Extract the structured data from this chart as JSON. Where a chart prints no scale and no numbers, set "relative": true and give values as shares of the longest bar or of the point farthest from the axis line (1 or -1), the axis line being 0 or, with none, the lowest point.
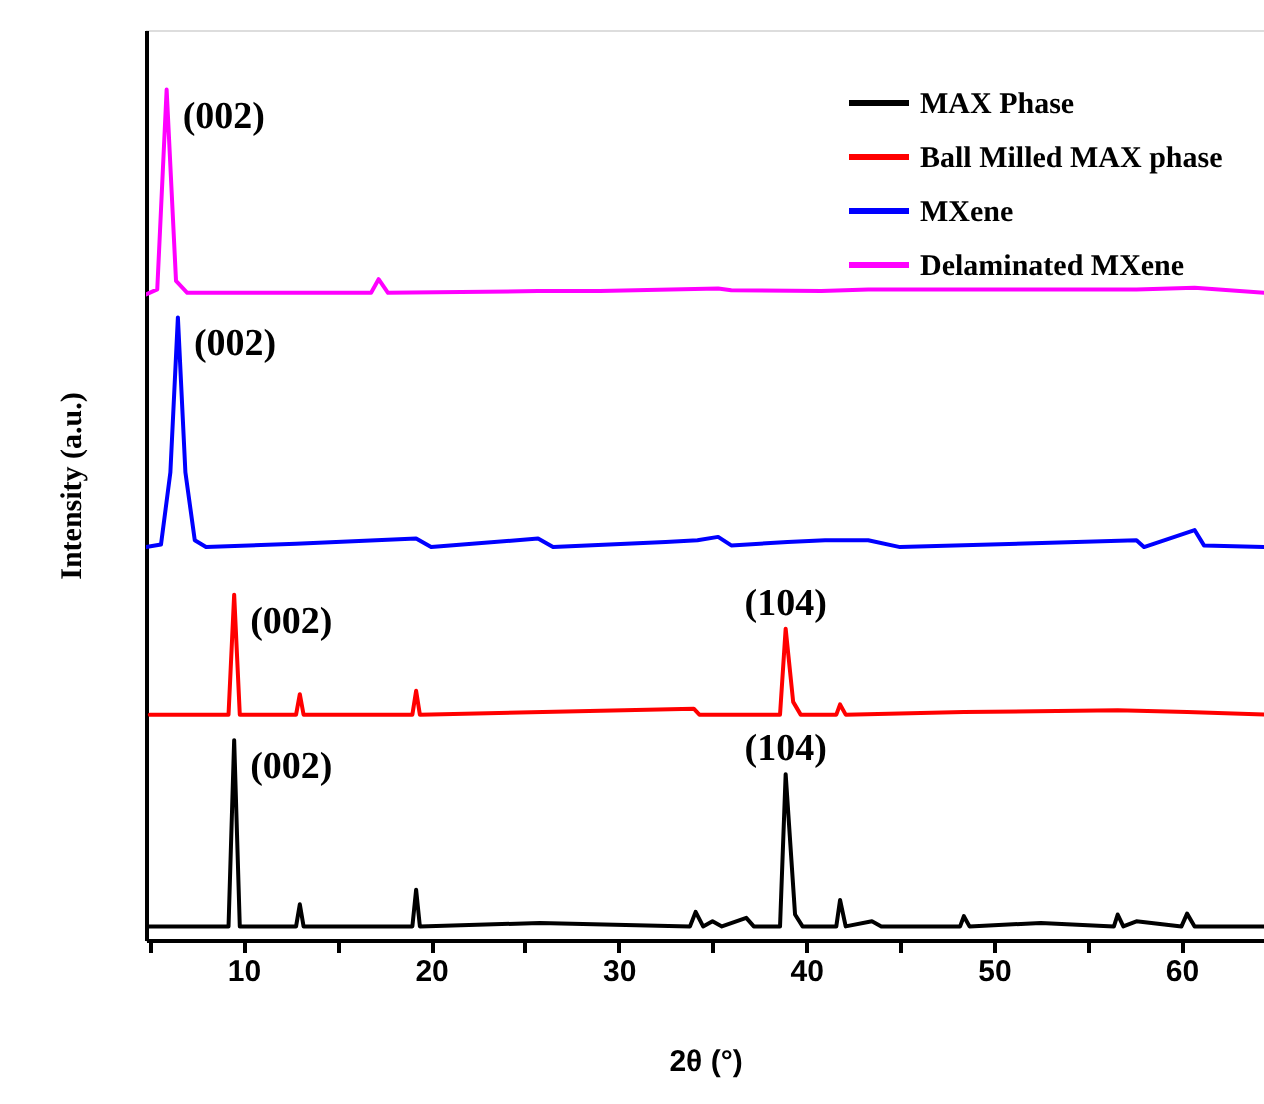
{
  "chart_data": {
    "type": "line",
    "relative": true,
    "xlabel": "2θ (°)",
    "ylabel": "Intensity (a.u.)",
    "xlim": [
      4.8,
      64.4
    ],
    "xticks": [
      {
        "value": 5,
        "label": null
      },
      10,
      {
        "value": 15,
        "label": null
      },
      20,
      {
        "value": 25,
        "label": null
      },
      30,
      {
        "value": 35,
        "label": null
      },
      40,
      {
        "value": 45,
        "label": null
      },
      50,
      {
        "value": 55,
        "label": null
      },
      60
    ],
    "tick_labels": "x",
    "grid": false,
    "legend": "top right",
    "marker": "none",
    "line_style": "solid",
    "series": [
      {
        "name": "MAX Phase",
        "color": "#000000",
        "x": [
          4.8,
          9.2,
          9.5,
          9.8,
          12.8,
          13.0,
          13.2,
          19.0,
          19.2,
          19.4,
          25.8,
          33.8,
          34.1,
          34.5,
          35.0,
          35.5,
          36.8,
          37.2,
          38.6,
          38.9,
          39.4,
          39.8,
          41.6,
          41.8,
          42.1,
          43.5,
          44.0,
          48.2,
          48.4,
          48.7,
          52.5,
          56.4,
          56.6,
          56.9,
          57.6,
          60.0,
          60.3,
          60.7,
          64.4
        ],
        "values": [
          0.016,
          0.016,
          0.235,
          0.016,
          0.016,
          0.042,
          0.016,
          0.016,
          0.059,
          0.016,
          0.02,
          0.016,
          0.033,
          0.016,
          0.022,
          0.016,
          0.026,
          0.016,
          0.016,
          0.195,
          0.03,
          0.016,
          0.016,
          0.047,
          0.016,
          0.022,
          0.016,
          0.016,
          0.028,
          0.016,
          0.02,
          0.016,
          0.03,
          0.016,
          0.022,
          0.016,
          0.031,
          0.016,
          0.016
        ]
      },
      {
        "name": "Ball Milled MAX phase",
        "color": "#ff0000",
        "x": [
          5.0,
          9.2,
          9.5,
          9.8,
          12.8,
          13.0,
          13.2,
          19.0,
          19.2,
          19.4,
          34.0,
          34.3,
          38.6,
          38.9,
          39.3,
          39.7,
          41.6,
          41.8,
          42.1,
          48.4,
          56.6,
          60.3,
          64.4
        ],
        "values": [
          0.265,
          0.265,
          0.406,
          0.265,
          0.265,
          0.289,
          0.265,
          0.265,
          0.293,
          0.265,
          0.272,
          0.265,
          0.265,
          0.366,
          0.28,
          0.265,
          0.265,
          0.277,
          0.265,
          0.268,
          0.27,
          0.268,
          0.265
        ]
      },
      {
        "name": "MXene",
        "color": "#0000ff",
        "x": [
          4.8,
          5.6,
          6.1,
          6.5,
          6.9,
          7.4,
          8.0,
          12.8,
          19.2,
          20.0,
          25.7,
          26.5,
          32.5,
          34.2,
          35.3,
          36.0,
          39.0,
          41.0,
          43.3,
          45.0,
          57.6,
          58.0,
          60.7,
          61.2,
          64.4
        ],
        "values": [
          0.462,
          0.465,
          0.55,
          0.732,
          0.55,
          0.47,
          0.462,
          0.466,
          0.472,
          0.462,
          0.472,
          0.462,
          0.468,
          0.47,
          0.474,
          0.464,
          0.468,
          0.47,
          0.47,
          0.462,
          0.47,
          0.462,
          0.482,
          0.464,
          0.462
        ]
      },
      {
        "name": "Delaminated MXene",
        "color": "#ff00ff",
        "x": [
          4.8,
          5.4,
          5.9,
          6.4,
          7.0,
          16.8,
          17.2,
          17.7,
          25.7,
          29.0,
          35.3,
          36.0,
          40.8,
          43.3,
          57.6,
          60.7,
          64.4
        ],
        "values": [
          0.759,
          0.765,
          1.0,
          0.775,
          0.761,
          0.761,
          0.777,
          0.761,
          0.763,
          0.763,
          0.766,
          0.764,
          0.763,
          0.765,
          0.765,
          0.767,
          0.761
        ]
      }
    ],
    "annotations": [
      {
        "text": "(002)",
        "x": 5.9,
        "y": 1.0
      },
      {
        "text": "(002)",
        "x": 6.5,
        "y": 0.732
      },
      {
        "text": "(002)",
        "x": 9.5,
        "y": 0.406
      },
      {
        "text": "(104)",
        "x": 38.9,
        "y": 0.366
      },
      {
        "text": "(002)",
        "x": 9.5,
        "y": 0.235
      },
      {
        "text": "(104)",
        "x": 38.9,
        "y": 0.195
      }
    ]
  }
}
